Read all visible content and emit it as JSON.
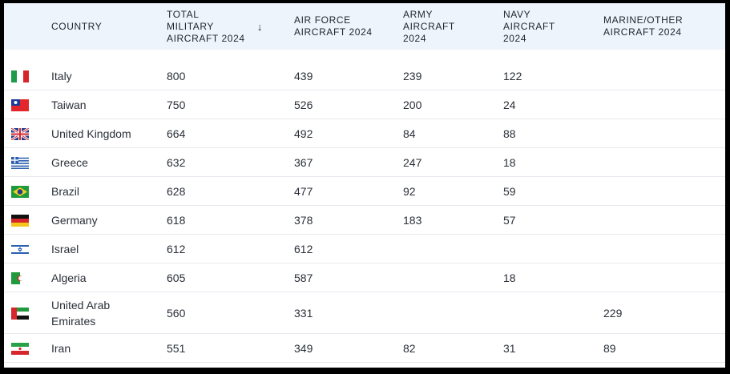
{
  "table": {
    "header": [
      "COUNTRY",
      "TOTAL MILITARY AIRCRAFT 2024",
      "AIR FORCE AIRCRAFT 2024",
      "ARMY AIRCRAFT 2024",
      "NAVY AIRCRAFT 2024",
      "MARINE/OTHER AIRCRAFT 2024"
    ],
    "sort_indicator": "↓",
    "rows": [
      [
        "Italy",
        800,
        439,
        239,
        122,
        null
      ],
      [
        "Taiwan",
        750,
        526,
        200,
        24,
        null
      ],
      [
        "United Kingdom",
        664,
        492,
        84,
        88,
        null
      ],
      [
        "Greece",
        632,
        367,
        247,
        18,
        null
      ],
      [
        "Brazil",
        628,
        477,
        92,
        59,
        null
      ],
      [
        "Germany",
        618,
        378,
        183,
        57,
        null
      ],
      [
        "Israel",
        612,
        612,
        null,
        null,
        null
      ],
      [
        "Algeria",
        605,
        587,
        null,
        18,
        null
      ],
      [
        "United Arab Emirates",
        560,
        331,
        null,
        null,
        229
      ],
      [
        "Iran",
        551,
        349,
        82,
        31,
        89
      ]
    ]
  }
}
